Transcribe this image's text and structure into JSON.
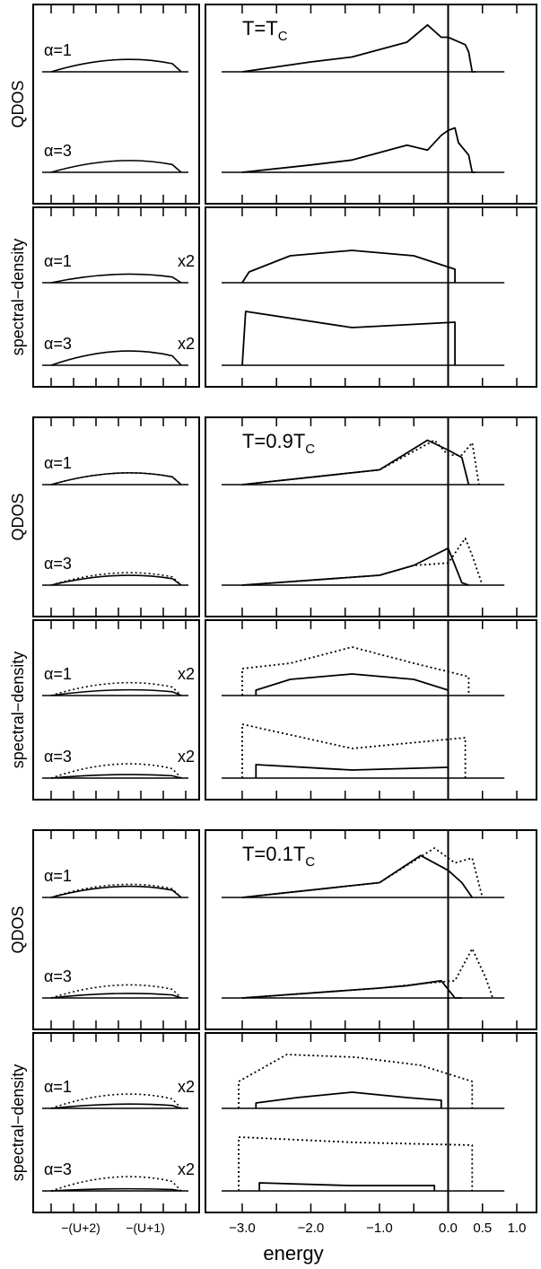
{
  "figure": {
    "x_axis_label": "energy",
    "x_ticks": [
      "−3.0",
      "−2.0",
      "−1.0",
      "0.0",
      "0.5",
      "1.0"
    ],
    "left_ticks": [
      "−(U+2)",
      "−(U+1)"
    ],
    "row_labels": {
      "qdos": "QDOS",
      "spectral": "spectral−density"
    },
    "alpha_labels": {
      "a1": "α=1",
      "a3": "α=3"
    },
    "scale_label": "x2"
  },
  "chart_data": {
    "type": "line",
    "x_range": [
      -3.6,
      1.0
    ],
    "vertical_line_at": 0.0,
    "line_styles": {
      "solid": "#000000",
      "dotted": "#000000"
    },
    "panels": [
      {
        "temperature": "T=T",
        "temperature_sub": "C",
        "rows": [
          {
            "quantity": "QDOS",
            "alpha": 1,
            "series": [
              {
                "style": "solid",
                "x": [
                  -3.0,
                  -2.0,
                  -1.4,
                  -0.6,
                  -0.3,
                  -0.1,
                  0.0,
                  0.25,
                  0.3,
                  0.35,
                  0.4
                ],
                "y": [
                  0.0,
                  0.2,
                  0.3,
                  0.6,
                  0.95,
                  0.7,
                  0.7,
                  0.55,
                  0.4,
                  0.0,
                  0.0
                ]
              }
            ]
          },
          {
            "quantity": "QDOS",
            "alpha": 3,
            "series": [
              {
                "style": "solid",
                "x": [
                  -3.0,
                  -2.0,
                  -1.4,
                  -0.6,
                  -0.3,
                  -0.1,
                  0.0,
                  0.1,
                  0.15,
                  0.3,
                  0.35,
                  0.4
                ],
                "y": [
                  0.0,
                  0.15,
                  0.25,
                  0.55,
                  0.45,
                  0.75,
                  0.85,
                  0.9,
                  0.6,
                  0.35,
                  0.0,
                  0.0
                ]
              }
            ]
          },
          {
            "quantity": "spectral-density",
            "alpha": 1,
            "scale": "x2",
            "series": [
              {
                "style": "solid",
                "x": [
                  -3.0,
                  -2.9,
                  -2.3,
                  -1.4,
                  -0.5,
                  0.1
                ],
                "y": [
                  0.0,
                  0.2,
                  0.5,
                  0.6,
                  0.5,
                  0.25
                ]
              }
            ]
          },
          {
            "quantity": "spectral-density",
            "alpha": 3,
            "scale": "x2",
            "series": [
              {
                "style": "solid",
                "x": [
                  -3.0,
                  -2.95,
                  -1.4,
                  0.1
                ],
                "y": [
                  0.0,
                  1.0,
                  0.7,
                  0.8
                ]
              }
            ]
          }
        ]
      },
      {
        "temperature": "T=0.9T",
        "temperature_sub": "C",
        "rows": [
          {
            "quantity": "QDOS",
            "alpha": 1,
            "series": [
              {
                "style": "solid",
                "x": [
                  -3.0,
                  -1.0,
                  -0.3,
                  0.0,
                  0.2,
                  0.3
                ],
                "y": [
                  0.0,
                  0.3,
                  0.9,
                  0.7,
                  0.55,
                  0.0
                ]
              },
              {
                "style": "dotted",
                "x": [
                  -3.0,
                  -1.0,
                  -0.2,
                  0.0,
                  0.2,
                  0.35,
                  0.45
                ],
                "y": [
                  0.0,
                  0.3,
                  0.9,
                  0.6,
                  0.6,
                  0.85,
                  0.0
                ]
              }
            ]
          },
          {
            "quantity": "QDOS",
            "alpha": 3,
            "series": [
              {
                "style": "solid",
                "x": [
                  -3.0,
                  -1.0,
                  -0.5,
                  0.0,
                  0.1,
                  0.2,
                  0.3
                ],
                "y": [
                  0.0,
                  0.2,
                  0.4,
                  0.75,
                  0.4,
                  0.05,
                  0.0
                ]
              },
              {
                "style": "dotted",
                "x": [
                  -3.0,
                  -1.0,
                  -0.5,
                  0.0,
                  0.25,
                  0.35,
                  0.5
                ],
                "y": [
                  0.0,
                  0.2,
                  0.4,
                  0.45,
                  0.95,
                  0.6,
                  0.0
                ]
              }
            ]
          },
          {
            "quantity": "spectral-density",
            "alpha": 1,
            "scale": "x2",
            "series": [
              {
                "style": "solid",
                "x": [
                  -2.8,
                  -2.3,
                  -1.4,
                  -0.5,
                  0.0
                ],
                "y": [
                  0.1,
                  0.3,
                  0.4,
                  0.3,
                  0.1
                ]
              },
              {
                "style": "dotted",
                "x": [
                  -3.0,
                  -2.3,
                  -1.4,
                  -0.5,
                  0.3
                ],
                "y": [
                  0.5,
                  0.6,
                  0.9,
                  0.6,
                  0.35
                ]
              }
            ]
          },
          {
            "quantity": "spectral-density",
            "alpha": 3,
            "scale": "x2",
            "series": [
              {
                "style": "solid",
                "x": [
                  -2.8,
                  -1.4,
                  0.0
                ],
                "y": [
                  0.25,
                  0.15,
                  0.2
                ]
              },
              {
                "style": "dotted",
                "x": [
                  -3.0,
                  -1.4,
                  0.25
                ],
                "y": [
                  1.0,
                  0.55,
                  0.75
                ]
              }
            ]
          }
        ]
      },
      {
        "temperature": "T=0.1T",
        "temperature_sub": "C",
        "rows": [
          {
            "quantity": "QDOS",
            "alpha": 1,
            "series": [
              {
                "style": "solid",
                "x": [
                  -3.0,
                  -1.0,
                  -0.4,
                  0.0,
                  0.2,
                  0.35
                ],
                "y": [
                  0.0,
                  0.3,
                  0.85,
                  0.55,
                  0.3,
                  0.0
                ]
              },
              {
                "style": "dotted",
                "x": [
                  -3.0,
                  -1.0,
                  -0.2,
                  0.1,
                  0.35,
                  0.5
                ],
                "y": [
                  0.0,
                  0.3,
                  1.0,
                  0.7,
                  0.8,
                  0.0
                ]
              }
            ]
          },
          {
            "quantity": "QDOS",
            "alpha": 3,
            "series": [
              {
                "style": "solid",
                "x": [
                  -3.0,
                  -1.0,
                  -0.6,
                  -0.1,
                  0.1,
                  0.2
                ],
                "y": [
                  0.0,
                  0.2,
                  0.25,
                  0.35,
                  0.0,
                  0.0
                ]
              },
              {
                "style": "dotted",
                "x": [
                  -3.0,
                  -1.0,
                  -0.3,
                  0.1,
                  0.35,
                  0.55,
                  0.65
                ],
                "y": [
                  0.0,
                  0.2,
                  0.3,
                  0.35,
                  1.0,
                  0.4,
                  0.0
                ]
              }
            ]
          },
          {
            "quantity": "spectral-density",
            "alpha": 1,
            "scale": "x2",
            "series": [
              {
                "style": "solid",
                "x": [
                  -2.8,
                  -2.2,
                  -1.4,
                  -0.6,
                  -0.1
                ],
                "y": [
                  0.1,
                  0.2,
                  0.3,
                  0.2,
                  0.15
                ]
              },
              {
                "style": "dotted",
                "x": [
                  -3.05,
                  -2.35,
                  -1.35,
                  -0.4,
                  0.35
                ],
                "y": [
                  0.5,
                  1.0,
                  0.95,
                  0.8,
                  0.5
                ]
              }
            ]
          },
          {
            "quantity": "spectral-density",
            "alpha": 3,
            "scale": "x2",
            "series": [
              {
                "style": "solid",
                "x": [
                  -2.75,
                  -1.45,
                  -0.2
                ],
                "y": [
                  0.15,
                  0.1,
                  0.1
                ]
              },
              {
                "style": "dotted",
                "x": [
                  -3.05,
                  -1.35,
                  0.35
                ],
                "y": [
                  1.0,
                  0.9,
                  0.85
                ]
              }
            ]
          }
        ]
      }
    ]
  }
}
